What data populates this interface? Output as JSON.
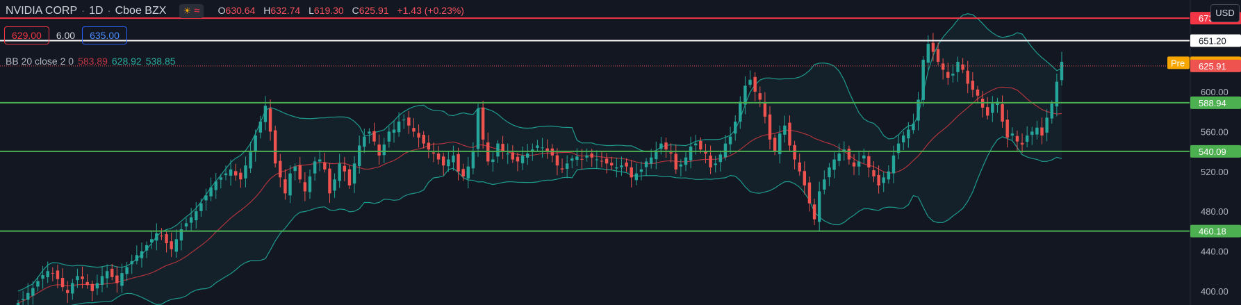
{
  "header": {
    "symbol": "NVIDIA CORP",
    "interval": "1D",
    "exchange": "Cboe BZX",
    "ohlc": {
      "o_label": "O",
      "o": "630.64",
      "h_label": "H",
      "h": "632.74",
      "l_label": "L",
      "l": "619.30",
      "c_label": "C",
      "c": "625.91",
      "change": "+1.43 (+0.23%)"
    }
  },
  "trade_bar": {
    "sell": "629.00",
    "spread": "6.00",
    "buy": "635.00"
  },
  "indicator": {
    "name": "BB 20 close 2 0",
    "basis": "583.89",
    "upper": "628.92",
    "lower": "538.85"
  },
  "currency": "USD",
  "colors": {
    "background": "#131722",
    "up": "#26a69a",
    "down": "#ef5350",
    "level_green": "#4caf50",
    "level_red": "#f23645",
    "pre": "#f7a600"
  },
  "chart_data": {
    "type": "candlestick",
    "y_axis_ticks": [
      "600.00",
      "560.00",
      "520.00",
      "480.00",
      "440.00",
      "400.00"
    ],
    "ylim": [
      386,
      692
    ],
    "horizontal_levels": [
      {
        "value": 673.78,
        "label": "673.78",
        "color": "#f23645"
      },
      {
        "value": 651.2,
        "label": "651.20",
        "color": "#ffffff"
      },
      {
        "value": 588.94,
        "label": "588.94",
        "color": "#4caf50"
      },
      {
        "value": 540.09,
        "label": "540.09",
        "color": "#4caf50"
      },
      {
        "value": 460.18,
        "label": "460.18",
        "color": "#4caf50"
      }
    ],
    "markers": [
      {
        "label": "Pre",
        "value": 629.02,
        "value_label": "629.02",
        "color": "#f7a600"
      },
      {
        "label": "",
        "value": 625.91,
        "value_label": "625.91",
        "color": "#ef5350"
      }
    ],
    "closes": [
      388,
      392,
      398,
      403,
      410,
      416,
      420,
      418,
      412,
      404,
      398,
      408,
      415,
      412,
      406,
      400,
      408,
      415,
      420,
      414,
      408,
      418,
      424,
      430,
      436,
      440,
      446,
      452,
      458,
      455,
      448,
      442,
      452,
      462,
      468,
      474,
      480,
      488,
      496,
      504,
      510,
      514,
      518,
      522,
      516,
      512,
      526,
      540,
      556,
      570,
      586,
      560,
      528,
      514,
      498,
      518,
      525,
      512,
      500,
      515,
      530,
      532,
      522,
      498,
      512,
      528,
      520,
      506,
      528,
      546,
      555,
      560,
      550,
      536,
      547,
      560,
      562,
      570,
      572,
      566,
      560,
      554,
      548,
      542,
      538,
      532,
      526,
      532,
      536,
      520,
      515,
      525,
      540,
      583,
      552,
      530,
      532,
      548,
      540,
      538,
      532,
      530,
      536,
      538,
      542,
      546,
      544,
      540,
      536,
      526,
      522,
      528,
      533,
      535,
      532,
      536,
      534,
      532,
      530,
      528,
      526,
      524,
      526,
      525,
      514,
      518,
      522,
      530,
      534,
      540,
      548,
      542,
      538,
      522,
      527,
      534,
      545,
      548,
      542,
      538,
      524,
      528,
      537,
      548,
      555,
      570,
      590,
      606,
      612,
      600,
      592,
      575,
      552,
      540,
      558,
      566,
      546,
      532,
      520,
      506,
      488,
      472,
      500,
      512,
      524,
      532,
      538,
      542,
      532,
      525,
      530,
      536,
      524,
      515,
      506,
      514,
      520,
      536,
      548,
      556,
      562,
      568,
      592,
      632,
      648,
      640,
      630,
      622,
      614,
      618,
      630,
      622,
      608,
      602,
      596,
      584,
      576,
      588,
      590,
      570,
      554,
      558,
      550,
      547,
      556,
      560,
      564,
      556,
      574,
      588,
      610,
      630
    ]
  }
}
